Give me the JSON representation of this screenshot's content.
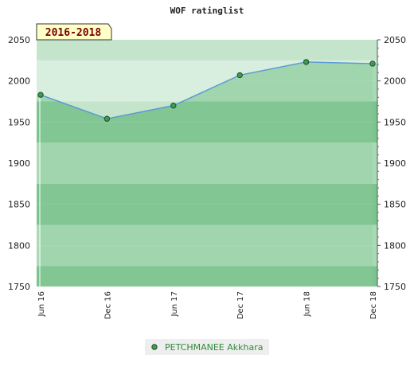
{
  "chart_data": {
    "type": "area",
    "title": "WOF ratinglist",
    "badge": "2016-2018",
    "x": [
      "Jun 16",
      "Dec 16",
      "Jun 17",
      "Dec 17",
      "Jun 18",
      "Dec 18"
    ],
    "series": [
      {
        "name": "PETCHMANEE Akkhara",
        "values": [
          1983,
          1954,
          1970,
          2007,
          2023,
          2021
        ]
      }
    ],
    "ylim": [
      1750,
      2050
    ],
    "yticks": [
      1750,
      1800,
      1850,
      1900,
      1950,
      2000,
      2050
    ],
    "xlabel": "",
    "ylabel": "",
    "grid": true,
    "legend": "bottom",
    "colors": {
      "line": "#5b9bd5",
      "marker_fill": "#3f9a52",
      "area_fill": "#8fcc9e",
      "band_light": "#a9dab5",
      "band_dark": "#7cc48f",
      "legend_text": "#2e8b3d",
      "badge_fill": "#ffffc8",
      "badge_text": "#7a0000"
    }
  }
}
